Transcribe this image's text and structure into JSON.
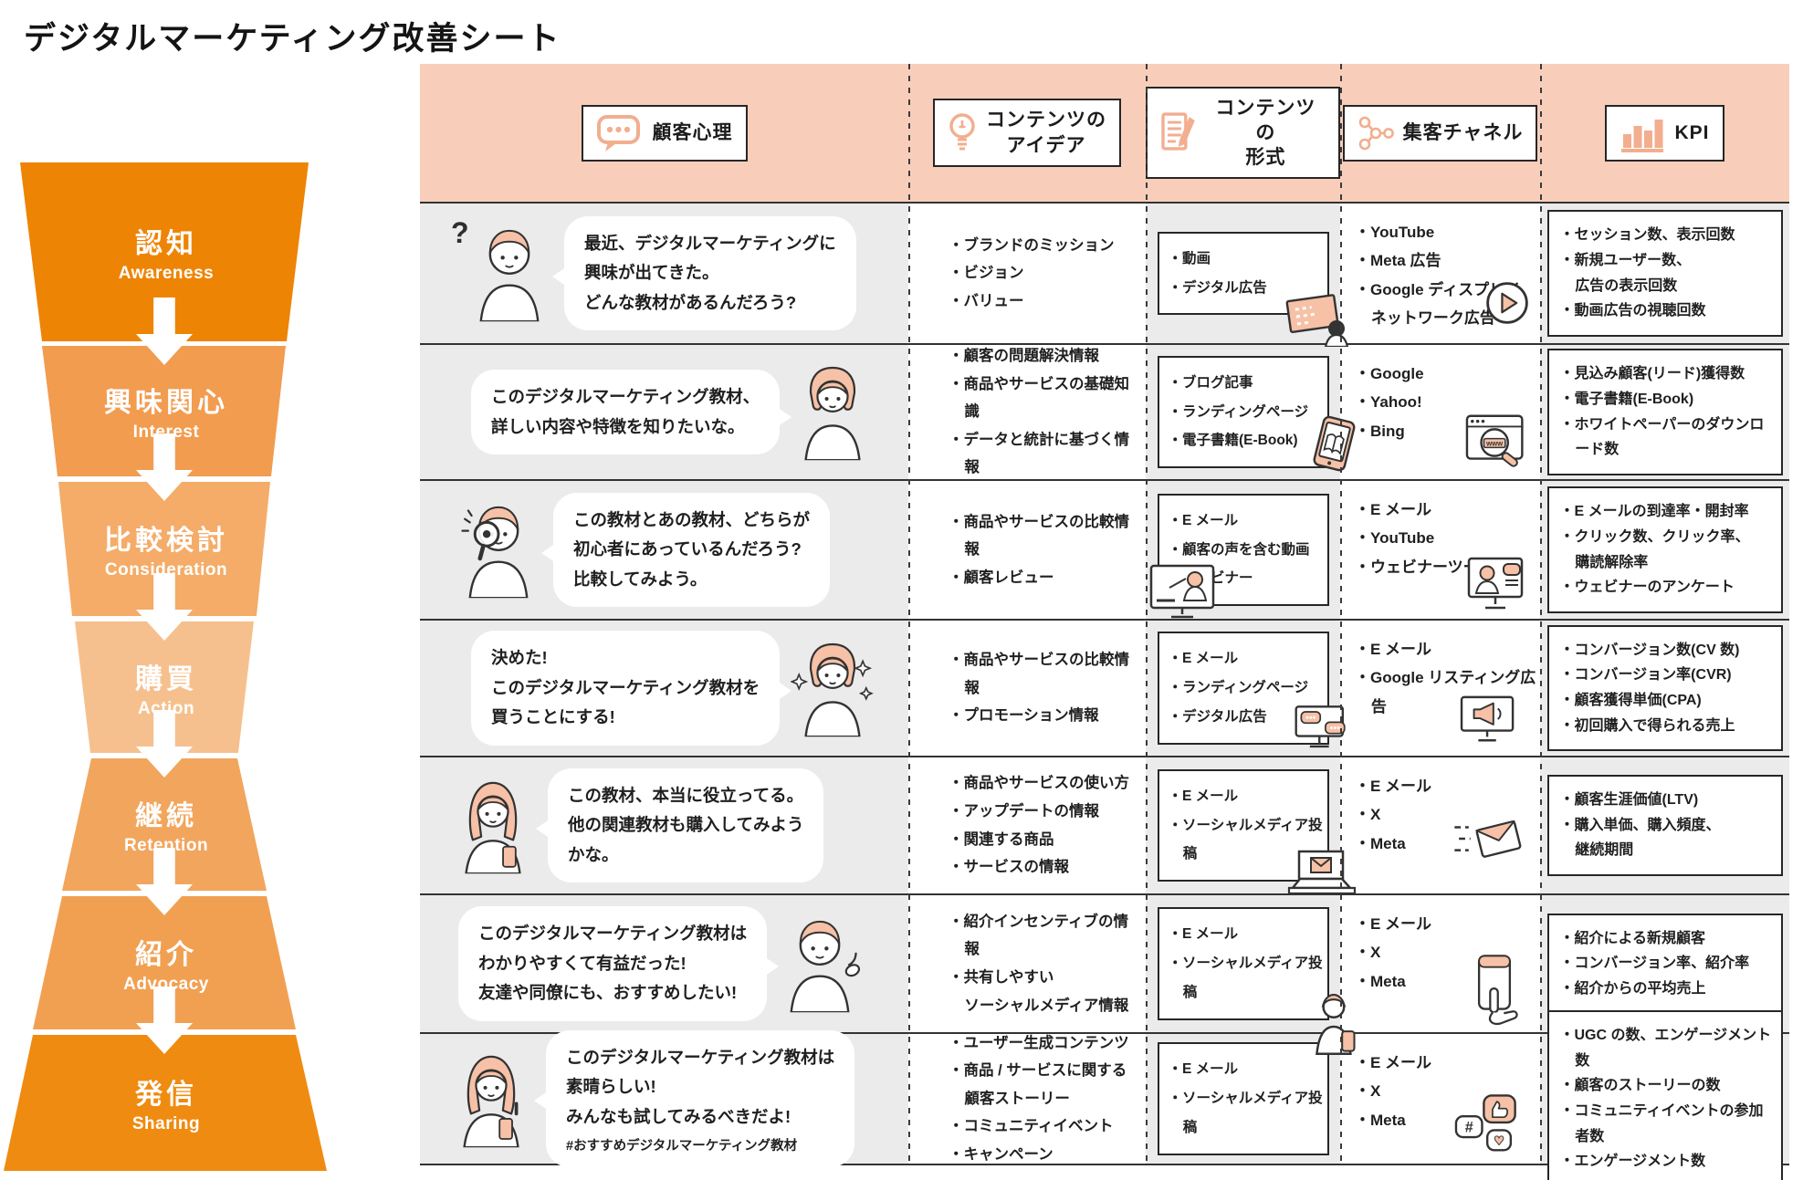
{
  "title": "デジタルマーケティング改善シート",
  "colors": {
    "header_band": "#f8cebb",
    "cell_gray": "#ebebeb",
    "line_black": "#2e2e2e",
    "illustration_peach": "#f6c1a6",
    "icon_peach": "#f2ae8f"
  },
  "header": {
    "columns": [
      {
        "label": "顧客心理",
        "icon": "speech-bubble-icon"
      },
      {
        "label": "コンテンツの\nアイデア",
        "icon": "lightbulb-icon"
      },
      {
        "label": "コンテンツの\n形式",
        "icon": "document-pencil-icon"
      },
      {
        "label": "集客チャネル",
        "icon": "network-icon"
      },
      {
        "label": "KPI",
        "icon": "bar-chart-icon"
      }
    ]
  },
  "funnel": {
    "stages": [
      {
        "jp": "認知",
        "en": "Awareness",
        "color": "#ee8404"
      },
      {
        "jp": "興味関心",
        "en": "Interest",
        "color": "#f29c50"
      },
      {
        "jp": "比較検討",
        "en": "Consideration",
        "color": "#f4ac68"
      },
      {
        "jp": "購買",
        "en": "Action",
        "color": "#f6c08e"
      },
      {
        "jp": "継続",
        "en": "Retention",
        "color": "#f2a55c"
      },
      {
        "jp": "紹介",
        "en": "Advocacy",
        "color": "#f1a052"
      },
      {
        "jp": "発信",
        "en": "Sharing",
        "color": "#ef8b10"
      }
    ]
  },
  "rows": [
    {
      "stage": "認知",
      "psychology": {
        "text": "最近、デジタルマーケティングに\n興味が出てきた。\nどんな教材があるんだろう?"
      },
      "ideas": [
        "・ブランドのミッション",
        "・ビジョン",
        "・バリュー"
      ],
      "format": [
        "・動画",
        "・デジタル広告"
      ],
      "channels": [
        "・YouTube",
        "・Meta 広告",
        "・Google ディスプレイ\nネットワーク広告"
      ],
      "kpi": [
        "・セッション数、表示回数",
        "・新規ユーザー数、\n広告の表示回数",
        "・動画広告の視聴回数"
      ]
    },
    {
      "stage": "興味関心",
      "psychology": {
        "text": "このデジタルマーケティング教材、\n詳しい内容や特徴を知りたいな。"
      },
      "ideas": [
        "・顧客の問題解決情報",
        "・商品やサービスの基礎知識",
        "・データと統計に基づく情報"
      ],
      "format": [
        "・ブログ記事",
        "・ランディングページ",
        "・電子書籍(E-Book)"
      ],
      "channels": [
        "・Google",
        "・Yahoo!",
        "・Bing"
      ],
      "kpi": [
        "・見込み顧客(リード)獲得数",
        "・電子書籍(E-Book)",
        "・ホワイトペーパーのダウンロード数"
      ]
    },
    {
      "stage": "比較検討",
      "psychology": {
        "text": "この教材とあの教材、どちらが\n初心者にあっているんだろう?\n比較してみよう。"
      },
      "ideas": [
        "・商品やサービスの比較情報",
        "・顧客レビュー"
      ],
      "format": [
        "・E メール",
        "・顧客の声を含む動画",
        "・ウェビナー"
      ],
      "channels": [
        "・E メール",
        "・YouTube",
        "・ウェビナーツール"
      ],
      "kpi": [
        "・E メールの到達率・開封率",
        "・クリック数、クリック率、\n購読解除率",
        "・ウェビナーのアンケート"
      ]
    },
    {
      "stage": "購買",
      "psychology": {
        "text": "決めた!\nこのデジタルマーケティング教材を\n買うことにする!"
      },
      "ideas": [
        "・商品やサービスの比較情報",
        "・プロモーション情報"
      ],
      "format": [
        "・E メール",
        "・ランディングページ",
        "・デジタル広告"
      ],
      "channels": [
        "・E メール",
        "・Google リスティング広告"
      ],
      "kpi": [
        "・コンバージョン数(CV 数)",
        "・コンバージョン率(CVR)",
        "・顧客獲得単価(CPA)",
        "・初回購入で得られる売上"
      ]
    },
    {
      "stage": "継続",
      "psychology": {
        "text": "この教材、本当に役立ってる。\n他の関連教材も購入してみよう\nかな。"
      },
      "ideas": [
        "・商品やサービスの使い方",
        "・アップデートの情報",
        "・関連する商品",
        "・サービスの情報"
      ],
      "format": [
        "・E メール",
        "・ソーシャルメディア投稿"
      ],
      "channels": [
        "・E メール",
        "・X",
        "・Meta"
      ],
      "kpi": [
        "・顧客生涯価値(LTV)",
        "・購入単価、購入頻度、\n継続期間"
      ]
    },
    {
      "stage": "紹介",
      "psychology": {
        "text": "このデジタルマーケティング教材は\nわかりやすくて有益だった!\n友達や同僚にも、おすすめしたい!"
      },
      "ideas": [
        "・紹介インセンティブの情報",
        "・共有しやすい\nソーシャルメディア情報"
      ],
      "format": [
        "・E メール",
        "・ソーシャルメディア投稿"
      ],
      "channels": [
        "・E メール",
        "・X",
        "・Meta"
      ],
      "kpi": [
        "・紹介による新規顧客",
        "・コンバージョン率、紹介率",
        "・紹介からの平均売上"
      ]
    },
    {
      "stage": "発信",
      "psychology": {
        "text": "このデジタルマーケティング教材は\n素晴らしい!\nみんなも試してみるべきだよ!",
        "hashtag": "#おすすめデジタルマーケティング教材"
      },
      "ideas": [
        "・ユーザー生成コンテンツ",
        "・商品 / サービスに関する\n顧客ストーリー",
        "・コミュニティイベント",
        "・キャンペーン"
      ],
      "format": [
        "・E メール",
        "・ソーシャルメディア投稿"
      ],
      "channels": [
        "・E メール",
        "・X",
        "・Meta"
      ],
      "kpi": [
        "・UGC の数、エンゲージメント数",
        "・顧客のストーリーの数",
        "・コミュニティイベントの参加者数",
        "・エンゲージメント数"
      ]
    }
  ],
  "icons": {
    "header": [
      "speech-bubble-icon",
      "lightbulb-icon",
      "document-pencil-icon",
      "network-icon",
      "bar-chart-icon"
    ],
    "channel_icons": [
      "play-button-icon",
      "browser-search-icon",
      "webinar-screen-icon",
      "megaphone-screen-icon",
      "flying-mail-icon",
      "phone-hand-icon",
      "sns-reactions-icon"
    ],
    "format_icons": [
      "whiteboard-icon",
      "tablet-ebook-icon",
      "video-presenter-icon",
      "monitor-chat-icon",
      "laptop-mail-icon",
      "phone-user-icon"
    ]
  }
}
